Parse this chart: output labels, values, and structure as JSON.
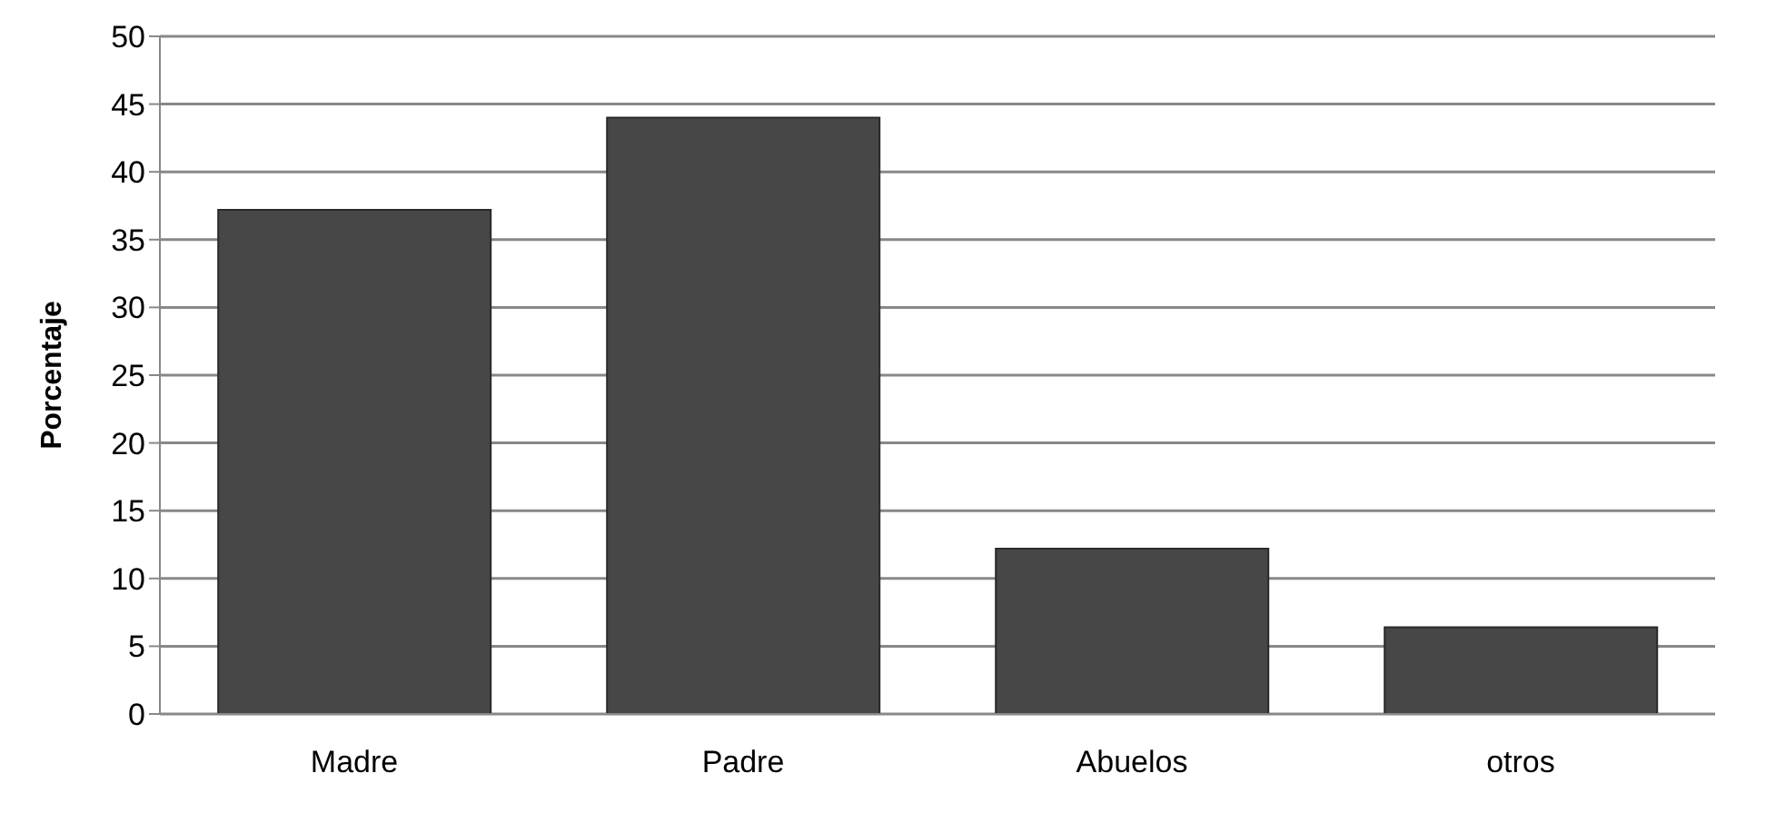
{
  "chart_data": {
    "type": "bar",
    "ylabel": "Porcentaje",
    "categories": [
      "Madre",
      "Padre",
      "Abuelos",
      "otros"
    ],
    "values": [
      37.2,
      44.0,
      12.2,
      6.4
    ],
    "color": "#474747",
    "ylim": [
      0,
      50
    ],
    "yticks": [
      0,
      5,
      10,
      15,
      20,
      25,
      30,
      35,
      40,
      45,
      50
    ],
    "grid": "y"
  }
}
